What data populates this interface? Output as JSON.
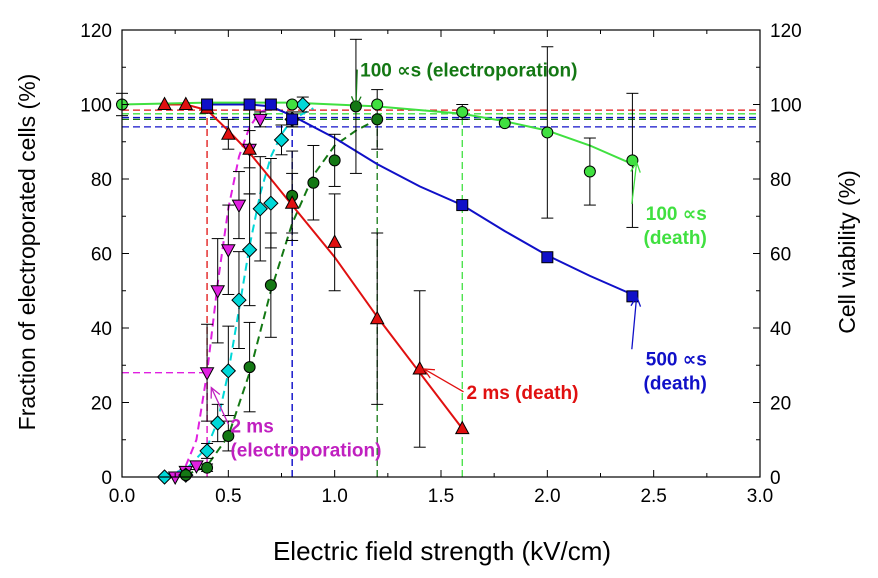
{
  "chart_data": {
    "type": "scatter",
    "title": "",
    "xlabel": "Electric field strength (kV/cm)",
    "ylabel_left": "Fraction of electroporated cells (%)",
    "ylabel_right": "Cell viability (%)",
    "xlim": [
      0.0,
      3.0
    ],
    "ylim": [
      0,
      120
    ],
    "x_ticks": [
      "0.0",
      "0.5",
      "1.0",
      "1.5",
      "2.0",
      "2.5",
      "3.0"
    ],
    "y_ticks": [
      "0",
      "20",
      "40",
      "60",
      "80",
      "100",
      "120"
    ],
    "grid": false,
    "series": [
      {
        "marker": "triangle-down",
        "color": "#e020e0",
        "axis": "left",
        "points": [
          [
            0.25,
            0
          ],
          [
            0.3,
            1.5
          ],
          [
            0.35,
            3
          ],
          [
            0.4,
            28
          ],
          [
            0.45,
            50
          ],
          [
            0.5,
            61
          ],
          [
            0.55,
            73
          ],
          [
            0.6,
            88
          ],
          [
            0.65,
            96
          ]
        ],
        "errors": [
          0,
          0.5,
          1,
          13,
          14,
          12,
          9,
          5,
          2
        ],
        "curve": [
          [
            0.25,
            0.8
          ],
          [
            0.3,
            3
          ],
          [
            0.35,
            10
          ],
          [
            0.4,
            28
          ],
          [
            0.45,
            52
          ],
          [
            0.5,
            72
          ],
          [
            0.55,
            86
          ],
          [
            0.6,
            94
          ],
          [
            0.65,
            98
          ],
          [
            0.7,
            99
          ]
        ]
      },
      {
        "marker": "diamond",
        "color": "#00d8d8",
        "axis": "left",
        "points": [
          [
            0.2,
            0
          ],
          [
            0.3,
            0.5
          ],
          [
            0.4,
            7
          ],
          [
            0.45,
            14.5
          ],
          [
            0.5,
            28.5
          ],
          [
            0.55,
            47.5
          ],
          [
            0.6,
            61
          ],
          [
            0.65,
            72
          ],
          [
            0.7,
            73.5
          ],
          [
            0.75,
            90.5
          ],
          [
            0.8,
            96
          ],
          [
            0.85,
            100
          ]
        ],
        "errors": [
          0,
          0.5,
          2,
          5,
          12,
          13,
          15,
          14,
          12,
          4,
          2,
          2
        ],
        "curve": [
          [
            0.2,
            0.5
          ],
          [
            0.3,
            2
          ],
          [
            0.4,
            8
          ],
          [
            0.45,
            15
          ],
          [
            0.5,
            28
          ],
          [
            0.55,
            45
          ],
          [
            0.6,
            62
          ],
          [
            0.65,
            76
          ],
          [
            0.7,
            86
          ],
          [
            0.75,
            92
          ],
          [
            0.8,
            96
          ],
          [
            0.9,
            99
          ]
        ]
      },
      {
        "marker": "circle",
        "color": "#147814",
        "axis": "left",
        "points": [
          [
            0.3,
            0.5
          ],
          [
            0.4,
            2.5
          ],
          [
            0.5,
            11
          ],
          [
            0.6,
            29.5
          ],
          [
            0.7,
            51.5
          ],
          [
            0.8,
            75.5
          ],
          [
            0.9,
            79
          ],
          [
            1.0,
            85
          ],
          [
            1.1,
            99.5
          ],
          [
            1.2,
            96
          ]
        ],
        "errors": [
          0.5,
          1,
          4,
          12,
          14,
          12,
          10,
          7,
          18,
          8
        ],
        "curve": [
          [
            0.3,
            0.5
          ],
          [
            0.4,
            3
          ],
          [
            0.5,
            11
          ],
          [
            0.6,
            28
          ],
          [
            0.7,
            50
          ],
          [
            0.8,
            68
          ],
          [
            0.9,
            81
          ],
          [
            1.0,
            89
          ],
          [
            1.1,
            93
          ],
          [
            1.2,
            96
          ]
        ]
      },
      {
        "marker": "triangle-up",
        "color": "#e01010",
        "axis": "right",
        "points": [
          [
            0.2,
            100
          ],
          [
            0.3,
            100
          ],
          [
            0.4,
            99
          ],
          [
            0.5,
            92
          ],
          [
            0.6,
            88
          ],
          [
            0.8,
            73.5
          ],
          [
            1.0,
            63
          ],
          [
            1.2,
            42.5
          ],
          [
            1.4,
            29
          ],
          [
            1.6,
            13
          ]
        ],
        "errors": [
          0,
          0,
          1,
          4,
          12,
          8,
          13,
          23,
          21,
          0
        ],
        "curve": [
          [
            0.2,
            100
          ],
          [
            0.3,
            100
          ],
          [
            0.4,
            98.5
          ],
          [
            0.5,
            93
          ],
          [
            0.6,
            87
          ],
          [
            0.7,
            80
          ],
          [
            0.8,
            73
          ],
          [
            1.0,
            59
          ],
          [
            1.2,
            43
          ],
          [
            1.4,
            28
          ],
          [
            1.6,
            13
          ]
        ]
      },
      {
        "marker": "square",
        "color": "#1010c8",
        "axis": "right",
        "points": [
          [
            0.4,
            100
          ],
          [
            0.6,
            100
          ],
          [
            0.7,
            100
          ],
          [
            0.8,
            96
          ],
          [
            1.6,
            73
          ],
          [
            2.0,
            59
          ],
          [
            2.4,
            48.5
          ]
        ],
        "errors": [
          0,
          0,
          0,
          2,
          0,
          0,
          0
        ],
        "curve": [
          [
            0.4,
            100
          ],
          [
            0.6,
            100
          ],
          [
            0.7,
            99.5
          ],
          [
            0.8,
            97
          ],
          [
            1.0,
            91
          ],
          [
            1.2,
            84
          ],
          [
            1.4,
            78
          ],
          [
            1.6,
            73
          ],
          [
            1.8,
            66
          ],
          [
            2.0,
            59.5
          ],
          [
            2.2,
            54
          ],
          [
            2.4,
            49
          ]
        ]
      },
      {
        "marker": "circle",
        "color": "#40e040",
        "axis": "right",
        "points": [
          [
            0.0,
            100
          ],
          [
            0.8,
            100
          ],
          [
            1.2,
            100
          ],
          [
            1.6,
            98
          ],
          [
            1.8,
            95
          ],
          [
            2.0,
            92.5
          ],
          [
            2.2,
            82
          ],
          [
            2.4,
            85
          ]
        ],
        "errors": [
          3,
          0,
          0,
          2,
          0,
          23,
          9,
          18
        ],
        "curve": [
          [
            0.0,
            100
          ],
          [
            0.4,
            100.5
          ],
          [
            0.8,
            100.5
          ],
          [
            1.2,
            99.5
          ],
          [
            1.6,
            97.5
          ],
          [
            1.8,
            95.5
          ],
          [
            2.0,
            93
          ],
          [
            2.2,
            89
          ],
          [
            2.4,
            84
          ]
        ]
      }
    ],
    "reference_lines": [
      {
        "color": "#e01010",
        "y": 98.5,
        "x": 0.4,
        "ymax": 98.5
      },
      {
        "color": "#e020e0",
        "y": 28,
        "x": 0.4,
        "ymax": 28
      },
      {
        "color": "#1010c8",
        "y": 94,
        "x": 0.8,
        "ymax": 94
      },
      {
        "color": "#1010c8",
        "y": 96.5,
        "x": 0.8,
        "ymax": 96.5
      },
      {
        "color": "#147814",
        "y": 96,
        "x": 1.2,
        "ymax": 96
      },
      {
        "color": "#40e040",
        "y": 97.5,
        "x": 1.6,
        "ymax": 97.5
      }
    ],
    "annotations": [
      {
        "lines": [
          "100 ∝s (electroporation)"
        ],
        "color": "#147814",
        "x": 1.12,
        "y": 107.5,
        "anchor": "start",
        "arrow_to": [
          1.1,
          99.5
        ]
      },
      {
        "lines": [
          "100 ∝s",
          "(death)"
        ],
        "color": "#40e040",
        "x": 2.75,
        "y": 69,
        "anchor": "end",
        "arrow_to": [
          2.42,
          84.5
        ]
      },
      {
        "lines": [
          "500 ∝s",
          "(death)"
        ],
        "color": "#1010c8",
        "x": 2.75,
        "y": 30,
        "anchor": "end",
        "arrow_to": [
          2.42,
          48.5
        ]
      },
      {
        "lines": [
          "2 ms (death)"
        ],
        "color": "#e01010",
        "x": 1.62,
        "y": 21,
        "anchor": "start",
        "arrow_to": [
          1.42,
          29
        ]
      },
      {
        "lines": [
          "2 ms",
          "(electroporation)"
        ],
        "color": "#c020c0",
        "x": 0.51,
        "y": 12,
        "anchor": "start",
        "arrow_to": [
          0.42,
          24
        ]
      }
    ]
  }
}
